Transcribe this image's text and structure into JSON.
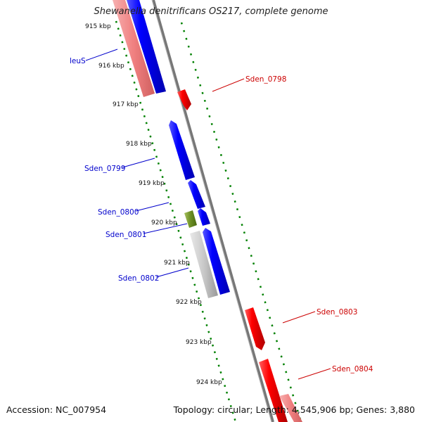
{
  "title": "Shewanella denitrificans OS217, complete genome",
  "accession": "Accession: NC_007954",
  "stats": "Topology: circular; Length: 4,545,906 bp; Genes: 3,880",
  "colors": {
    "forward_strand": "#0000ff",
    "reverse_strand": "#ff0000",
    "pseudo_gene": "#c0c0c0",
    "rna_gene": "#6b8e23",
    "backbone": "#808080",
    "ticks": "#008000",
    "forward_label": "#0000cc",
    "reverse_label": "#cc0000"
  },
  "ticks": [
    "915 kbp",
    "916 kbp",
    "917 kbp",
    "918 kbp",
    "919 kbp",
    "920 kbp",
    "921 kbp",
    "922 kbp",
    "923 kbp",
    "924 kbp"
  ],
  "genes": [
    {
      "name": "leuS",
      "strand": "forward"
    },
    {
      "name": "Sden_0798",
      "strand": "reverse"
    },
    {
      "name": "Sden_0799",
      "strand": "forward"
    },
    {
      "name": "Sden_0800",
      "strand": "forward"
    },
    {
      "name": "Sden_0801",
      "strand": "forward"
    },
    {
      "name": "Sden_0802",
      "strand": "forward"
    },
    {
      "name": "Sden_0803",
      "strand": "reverse"
    },
    {
      "name": "Sden_0804",
      "strand": "reverse"
    }
  ]
}
